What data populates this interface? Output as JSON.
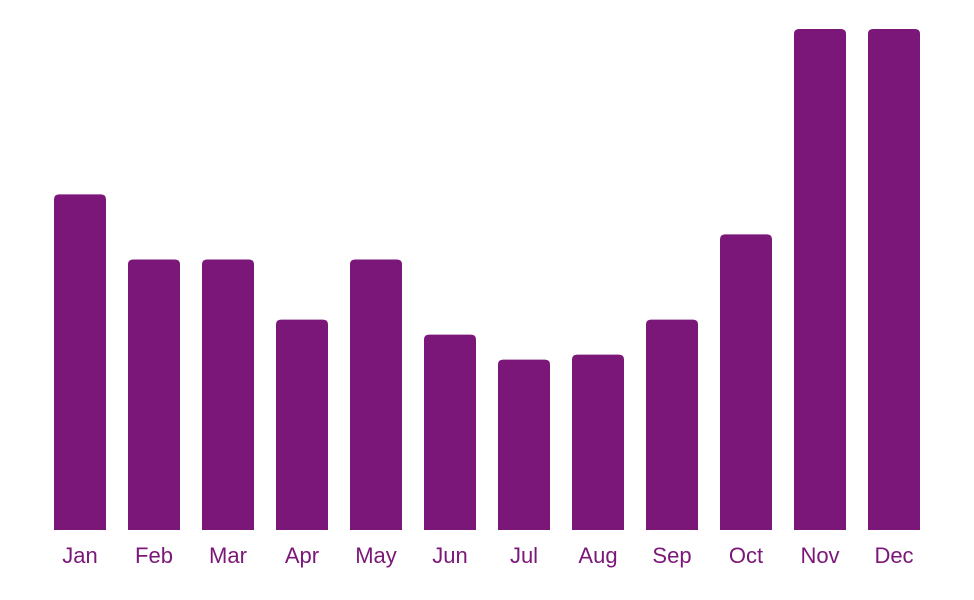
{
  "chart_data": {
    "type": "bar",
    "categories": [
      "Jan",
      "Feb",
      "Mar",
      "Apr",
      "May",
      "Jun",
      "Jul",
      "Aug",
      "Sep",
      "Oct",
      "Nov",
      "Dec"
    ],
    "values": [
      67,
      54,
      54,
      42,
      54,
      39,
      34,
      35,
      42,
      59,
      100,
      100
    ],
    "title": "",
    "xlabel": "",
    "ylabel": "",
    "ylim": [
      0,
      100
    ],
    "grid": false,
    "legend": "none",
    "colors": {
      "bar": "#7b1778",
      "label": "#7b1778",
      "background": "#ffffff"
    }
  }
}
